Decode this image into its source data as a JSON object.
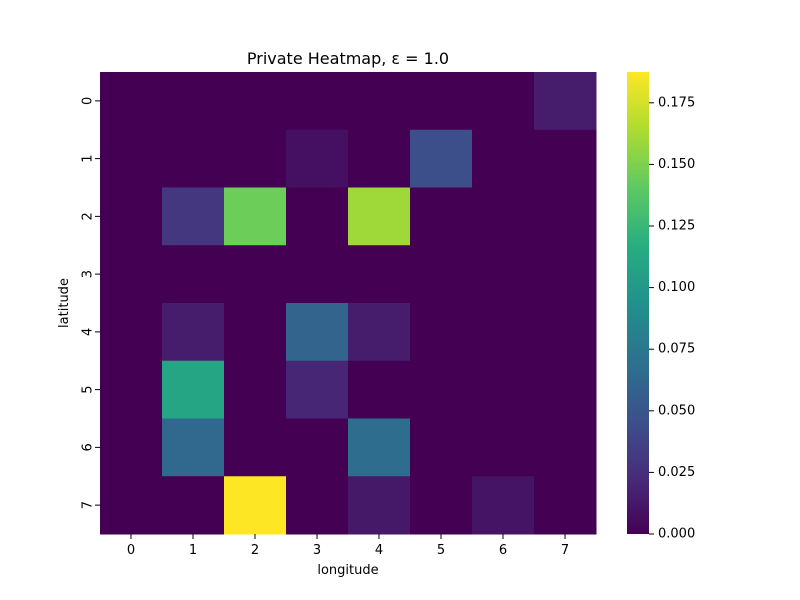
{
  "chart_data": {
    "type": "heatmap",
    "title": "Private Heatmap, ε = 1.0",
    "xlabel": "longitude",
    "ylabel": "latitude",
    "x_ticks": [
      "0",
      "1",
      "2",
      "3",
      "4",
      "5",
      "6",
      "7"
    ],
    "y_ticks": [
      "0",
      "1",
      "2",
      "3",
      "4",
      "5",
      "6",
      "7"
    ],
    "colormap": "viridis",
    "vmin": 0.0,
    "vmax": 0.1875,
    "colorbar_ticks": [
      0.0,
      0.025,
      0.05,
      0.075,
      0.1,
      0.125,
      0.15,
      0.175
    ],
    "colorbar_tick_labels": [
      "0.000",
      "0.025",
      "0.050",
      "0.075",
      "0.100",
      "0.125",
      "0.150",
      "0.175"
    ],
    "values": [
      [
        0,
        0,
        0,
        0,
        0,
        0,
        0,
        0.015
      ],
      [
        0,
        0,
        0,
        0.008,
        0,
        0.045,
        0,
        0
      ],
      [
        0,
        0.03,
        0.145,
        0,
        0.16,
        0,
        0,
        0
      ],
      [
        0,
        0,
        0,
        0,
        0,
        0,
        0,
        0
      ],
      [
        0,
        0.015,
        0,
        0.06,
        0.015,
        0,
        0,
        0
      ],
      [
        0,
        0.11,
        0,
        0.02,
        0,
        0,
        0,
        0
      ],
      [
        0,
        0.063,
        0,
        0,
        0.067,
        0,
        0,
        0
      ],
      [
        0,
        0,
        0.1875,
        0,
        0.012,
        0,
        0.01,
        0
      ]
    ],
    "grid": false,
    "colorbar": "right"
  }
}
